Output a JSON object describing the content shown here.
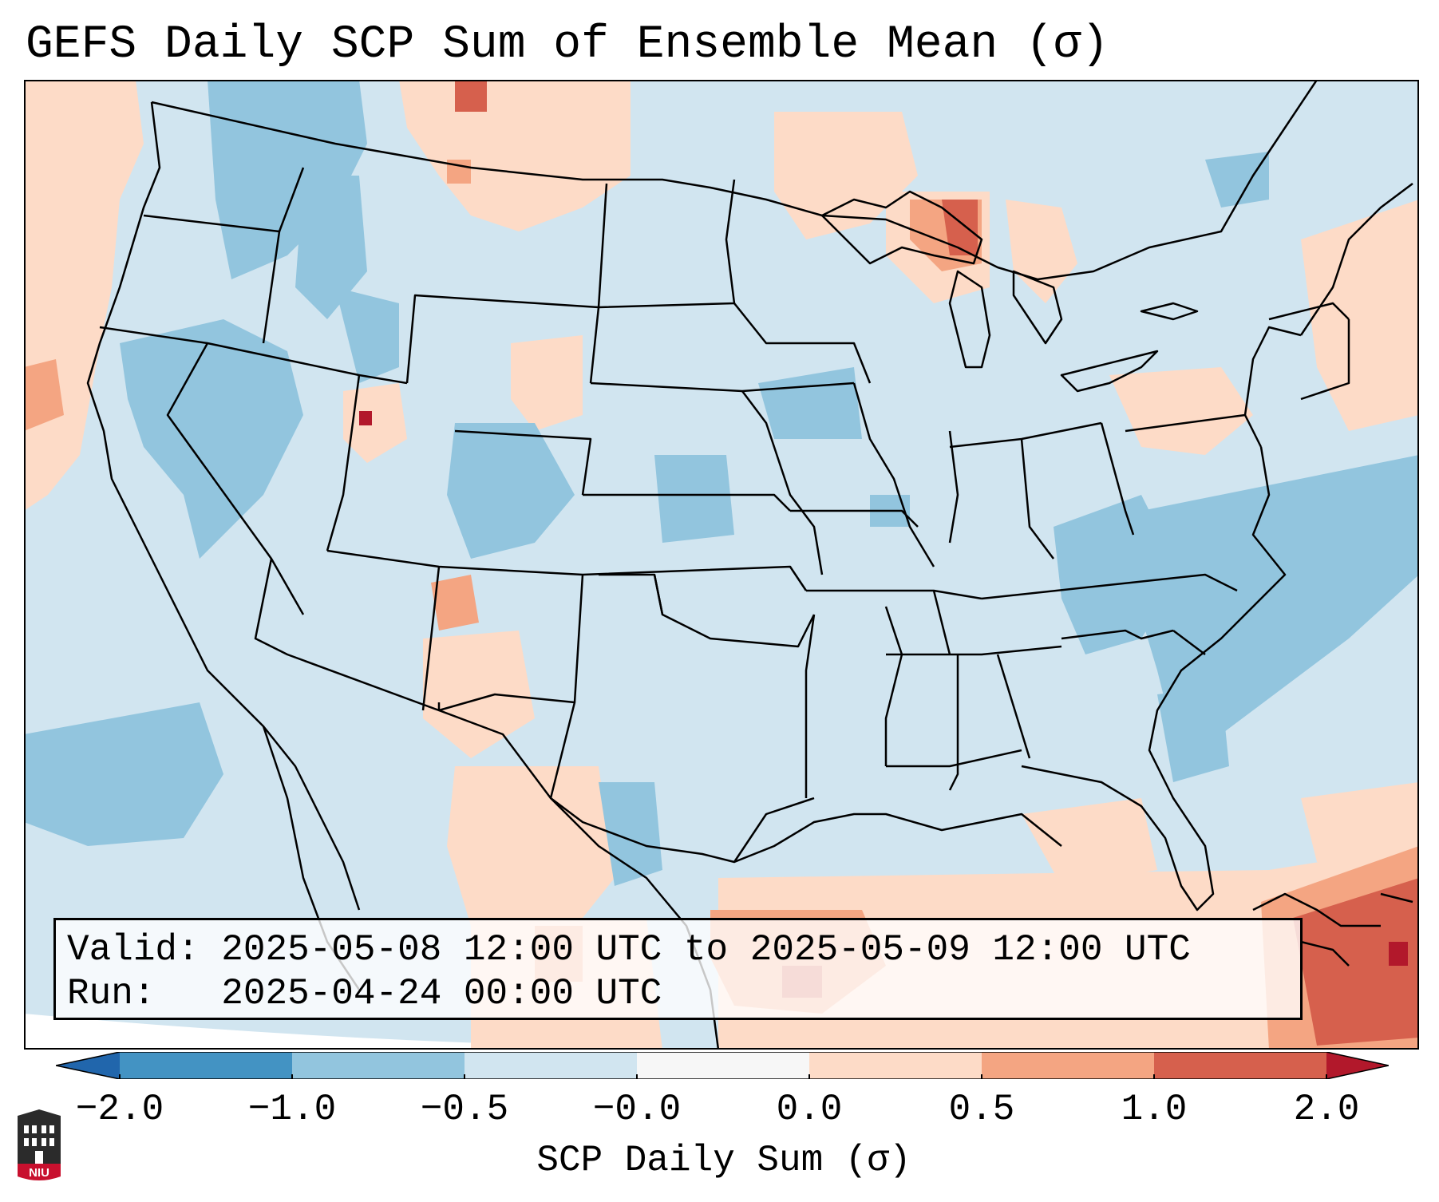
{
  "title": "GEFS Daily SCP Sum of Ensemble Mean (σ)",
  "info": {
    "valid_label": "Valid:",
    "valid_value": "2025-05-08 12:00 UTC to 2025-05-09 12:00 UTC",
    "run_label": "Run:",
    "run_value": "2025-04-24 00:00 UTC"
  },
  "colorbar": {
    "label": "SCP Daily Sum (σ)",
    "ticks": [
      "−2.0",
      "−1.0",
      "−0.5",
      "−0.0",
      "0.0",
      "0.5",
      "1.0",
      "2.0"
    ],
    "colors": {
      "below": "#2166ac",
      "bin_-2_-1": "#4393c3",
      "bin_-1_-0.5": "#92c5de",
      "bin_-0.5_0": "#d1e5f0",
      "bin_0": "#f7f7f7",
      "bin_0_0.5": "#fddbc7",
      "bin_0.5_1": "#f4a582",
      "bin_1_2": "#d6604d",
      "above": "#b2182b"
    }
  },
  "logo": {
    "text": "NIU",
    "icon": "niu-university-logo-icon"
  },
  "map": {
    "projection": "lambert-conformal",
    "region": "CONUS",
    "background_anomaly_color": "#d1e5f0",
    "ocean_outside_domain": "#ffffff"
  }
}
